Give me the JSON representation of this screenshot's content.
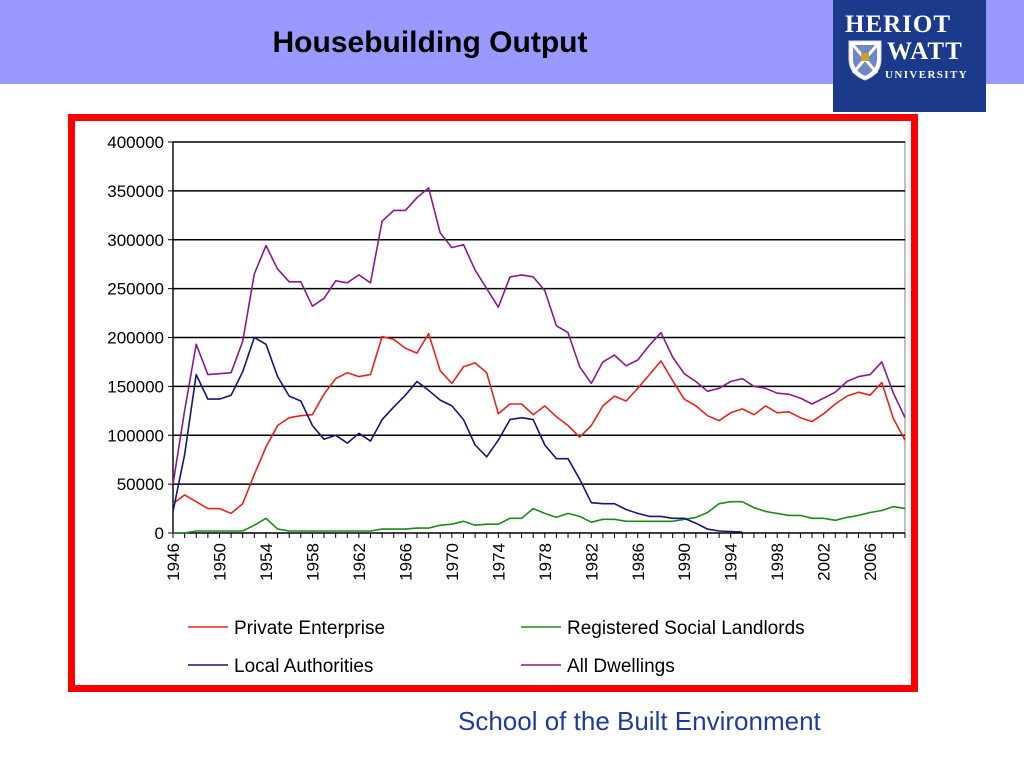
{
  "slide": {
    "title": "Housebuilding Output",
    "footer": "School of the Built Environment"
  },
  "logo": {
    "line1": "HERIOT",
    "line2": "WATT",
    "line3": "UNIVERSITY",
    "icon": "university-crest-icon",
    "color": "#1b3a8c"
  },
  "colors": {
    "header_band": "#9999ff",
    "frame": "#ff0000",
    "footer_text": "#1f3aa6"
  },
  "chart_data": {
    "type": "line",
    "title": "",
    "xlabel": "",
    "ylabel": "",
    "ylim": [
      0,
      400000
    ],
    "yticks": [
      0,
      50000,
      100000,
      150000,
      200000,
      250000,
      300000,
      350000,
      400000
    ],
    "xlim": [
      1946,
      2009
    ],
    "xticks": [
      1946,
      1950,
      1954,
      1958,
      1962,
      1966,
      1970,
      1974,
      1978,
      1982,
      1986,
      1990,
      1994,
      1998,
      2002,
      2006
    ],
    "grid": "horizontal",
    "legend": "bottom",
    "x": [
      1946,
      1947,
      1948,
      1949,
      1950,
      1951,
      1952,
      1953,
      1954,
      1955,
      1956,
      1957,
      1958,
      1959,
      1960,
      1961,
      1962,
      1963,
      1964,
      1965,
      1966,
      1967,
      1968,
      1969,
      1970,
      1971,
      1972,
      1973,
      1974,
      1975,
      1976,
      1977,
      1978,
      1979,
      1980,
      1981,
      1982,
      1983,
      1984,
      1985,
      1986,
      1987,
      1988,
      1989,
      1990,
      1991,
      1992,
      1993,
      1994,
      1995,
      1996,
      1997,
      1998,
      1999,
      2000,
      2001,
      2002,
      2003,
      2004,
      2005,
      2006,
      2007,
      2008,
      2009
    ],
    "series": [
      {
        "name": "Private Enterprise",
        "color": "#e8231c",
        "values": [
          30000,
          39000,
          32000,
          25000,
          25000,
          20000,
          30000,
          60000,
          88000,
          110000,
          118000,
          120000,
          121000,
          142000,
          158000,
          164000,
          160000,
          162000,
          201000,
          198000,
          189000,
          184000,
          204000,
          166000,
          153000,
          170000,
          174000,
          164000,
          122000,
          132000,
          132000,
          121000,
          130000,
          119000,
          110000,
          98000,
          110000,
          130000,
          140000,
          135000,
          148000,
          162000,
          176000,
          156000,
          137000,
          130000,
          120000,
          115000,
          123000,
          127000,
          121000,
          130000,
          123000,
          124000,
          118000,
          114000,
          122000,
          132000,
          140000,
          144000,
          141000,
          154000,
          117000,
          95000
        ]
      },
      {
        "name": "Registered Social Landlords",
        "color": "#1d8a1d",
        "values": [
          0,
          0,
          2000,
          2000,
          2000,
          2000,
          2000,
          8000,
          15000,
          4000,
          2000,
          2000,
          2000,
          2000,
          2000,
          2000,
          2000,
          2000,
          4000,
          4000,
          4000,
          5000,
          5000,
          8000,
          9000,
          12000,
          8000,
          9000,
          9000,
          15000,
          15000,
          25000,
          20000,
          16000,
          20000,
          17000,
          11000,
          14000,
          14000,
          12000,
          12000,
          12000,
          12000,
          12000,
          14000,
          16000,
          21000,
          30000,
          32000,
          32000,
          26000,
          22000,
          20000,
          18000,
          18000,
          15000,
          15000,
          13000,
          16000,
          18000,
          21000,
          23000,
          27000,
          25000
        ]
      },
      {
        "name": "Local Authorities",
        "color": "#15157a",
        "values": [
          22000,
          80000,
          162000,
          137000,
          137000,
          141000,
          165000,
          200000,
          193000,
          160000,
          140000,
          135000,
          110000,
          96000,
          100000,
          92000,
          102000,
          94000,
          116000,
          129000,
          141000,
          155000,
          146000,
          136000,
          130000,
          116000,
          90000,
          78000,
          95000,
          116000,
          118000,
          116000,
          90000,
          76000,
          76000,
          55000,
          31000,
          30000,
          30000,
          24000,
          20000,
          17000,
          17000,
          15000,
          15000,
          10000,
          4000,
          2000,
          1500,
          1000,
          null,
          null,
          null,
          null,
          null,
          null,
          null,
          null,
          null,
          null,
          null,
          null,
          null,
          null
        ]
      },
      {
        "name": "All Dwellings",
        "color": "#8a1a8a",
        "values": [
          50000,
          125000,
          193000,
          162000,
          163000,
          164000,
          196000,
          265000,
          294000,
          270000,
          257000,
          257000,
          232000,
          240000,
          258000,
          256000,
          264000,
          256000,
          319000,
          330000,
          330000,
          343000,
          353000,
          307000,
          292000,
          295000,
          269000,
          250000,
          231000,
          262000,
          264000,
          262000,
          248000,
          212000,
          205000,
          170000,
          153000,
          175000,
          182000,
          171000,
          177000,
          192000,
          205000,
          180000,
          163000,
          155000,
          145000,
          148000,
          155000,
          158000,
          150000,
          148000,
          143000,
          142000,
          138000,
          132000,
          138000,
          144000,
          155000,
          160000,
          162000,
          175000,
          143000,
          118000
        ]
      }
    ]
  }
}
